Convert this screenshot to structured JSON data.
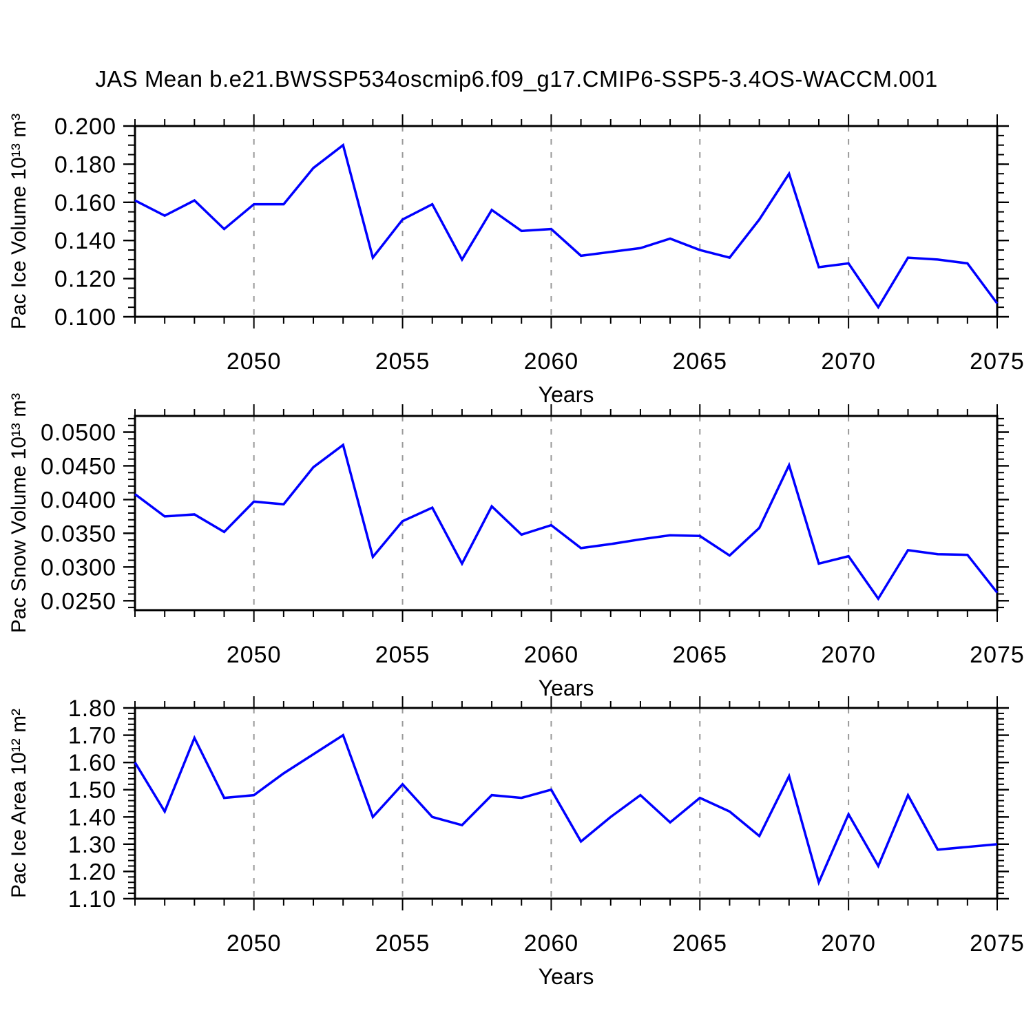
{
  "title": "JAS Mean b.e21.BWSSP534oscmip6.f09_g17.CMIP6-SSP5-3.4OS-WACCM.001",
  "colors": {
    "line": "#0000FF",
    "frame": "#000000",
    "grid": "#999999",
    "background": "#FFFFFF",
    "text": "#000000"
  },
  "x_axis": {
    "label": "Years",
    "range": [
      2046,
      2075
    ],
    "major_ticks": [
      2050,
      2055,
      2060,
      2065,
      2070,
      2075
    ],
    "grid_years": [
      2050,
      2055,
      2060,
      2065,
      2070
    ]
  },
  "chart_data": [
    {
      "type": "line",
      "ylabel": "Pac Ice Volume 10¹³ m³",
      "xlabel": "Years",
      "grid": "vertical-dashed",
      "legend": "none",
      "x": [
        2046,
        2047,
        2048,
        2049,
        2050,
        2051,
        2052,
        2053,
        2054,
        2055,
        2056,
        2057,
        2058,
        2059,
        2060,
        2061,
        2062,
        2063,
        2064,
        2065,
        2066,
        2067,
        2068,
        2069,
        2070,
        2071,
        2072,
        2073,
        2074,
        2075
      ],
      "values": [
        0.161,
        0.153,
        0.161,
        0.146,
        0.159,
        0.159,
        0.178,
        0.19,
        0.131,
        0.151,
        0.159,
        0.13,
        0.156,
        0.145,
        0.146,
        0.132,
        0.134,
        0.136,
        0.141,
        0.135,
        0.131,
        0.151,
        0.175,
        0.126,
        0.128,
        0.105,
        0.131,
        0.13,
        0.128,
        0.107
      ],
      "ylim": [
        0.1,
        0.2
      ],
      "yticks": [
        0.1,
        0.12,
        0.14,
        0.16,
        0.18,
        0.2
      ],
      "ytick_labels": [
        "0.100",
        "0.120",
        "0.140",
        "0.160",
        "0.180",
        "0.200"
      ],
      "yminor_step": 0.005
    },
    {
      "type": "line",
      "ylabel": "Pac Snow Volume 10¹³ m³",
      "xlabel": "Years",
      "grid": "vertical-dashed",
      "legend": "none",
      "x": [
        2046,
        2047,
        2048,
        2049,
        2050,
        2051,
        2052,
        2053,
        2054,
        2055,
        2056,
        2057,
        2058,
        2059,
        2060,
        2061,
        2062,
        2063,
        2064,
        2065,
        2066,
        2067,
        2068,
        2069,
        2070,
        2071,
        2072,
        2073,
        2074,
        2075
      ],
      "values": [
        0.0408,
        0.0375,
        0.0378,
        0.0352,
        0.0397,
        0.0393,
        0.0448,
        0.0481,
        0.0315,
        0.0368,
        0.0388,
        0.0305,
        0.039,
        0.0348,
        0.0362,
        0.0328,
        0.0334,
        0.0341,
        0.0347,
        0.0346,
        0.0317,
        0.0358,
        0.0451,
        0.0305,
        0.0316,
        0.0253,
        0.0325,
        0.0319,
        0.0318,
        0.0262
      ],
      "ylim": [
        0.0236,
        0.0524
      ],
      "yticks": [
        0.025,
        0.03,
        0.035,
        0.04,
        0.045,
        0.05
      ],
      "ytick_labels": [
        "0.0250",
        "0.0300",
        "0.0350",
        "0.0400",
        "0.0450",
        "0.0500"
      ],
      "yminor_step": 0.001
    },
    {
      "type": "line",
      "ylabel": "Pac Ice Area 10¹² m²",
      "xlabel": "Years",
      "grid": "vertical-dashed",
      "legend": "none",
      "x": [
        2046,
        2047,
        2048,
        2049,
        2050,
        2051,
        2052,
        2053,
        2054,
        2055,
        2056,
        2057,
        2058,
        2059,
        2060,
        2061,
        2062,
        2063,
        2064,
        2065,
        2066,
        2067,
        2068,
        2069,
        2070,
        2071,
        2072,
        2073,
        2074,
        2075
      ],
      "values": [
        1.6,
        1.42,
        1.69,
        1.47,
        1.48,
        1.56,
        1.63,
        1.7,
        1.4,
        1.52,
        1.4,
        1.37,
        1.48,
        1.47,
        1.5,
        1.31,
        1.4,
        1.48,
        1.38,
        1.47,
        1.42,
        1.33,
        1.55,
        1.16,
        1.41,
        1.22,
        1.48,
        1.28,
        1.29,
        1.3
      ],
      "ylim": [
        1.1,
        1.8
      ],
      "yticks": [
        1.1,
        1.2,
        1.3,
        1.4,
        1.5,
        1.6,
        1.7,
        1.8
      ],
      "ytick_labels": [
        "1.10",
        "1.20",
        "1.30",
        "1.40",
        "1.50",
        "1.60",
        "1.70",
        "1.80"
      ],
      "yminor_step": 0.02
    }
  ]
}
